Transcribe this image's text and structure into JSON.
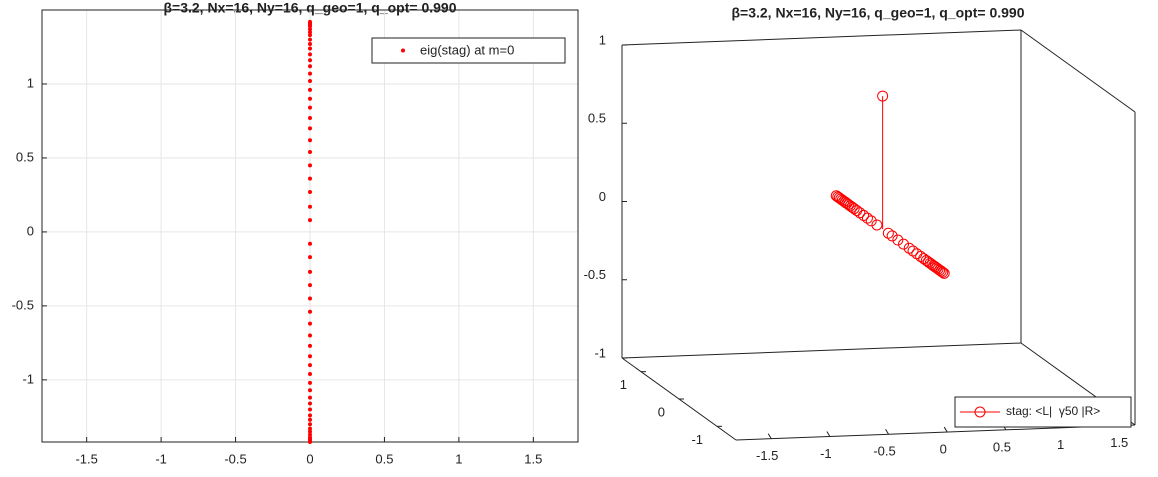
{
  "chart_data": [
    {
      "type": "scatter",
      "title": "β=3.2, Nx=16, Ny=16, q_geo=1, q_opt= 0.990",
      "series": [
        {
          "name": "eig(stag) at m=0",
          "color": "#ff0000",
          "x": [
            0,
            0,
            0,
            0,
            0,
            0,
            0,
            0,
            0,
            0,
            0,
            0,
            0,
            0,
            0,
            0,
            0,
            0,
            0,
            0,
            0,
            0,
            0,
            0,
            0,
            0,
            0,
            0,
            0,
            0,
            0,
            0,
            0,
            0,
            0,
            0,
            0,
            0,
            0,
            0,
            0,
            0,
            0,
            0,
            0,
            0,
            0,
            0,
            0,
            0,
            0,
            0,
            0,
            0
          ],
          "values": [
            1.42,
            1.41,
            1.4,
            1.39,
            1.37,
            1.35,
            1.33,
            1.3,
            1.27,
            1.24,
            1.2,
            1.16,
            1.12,
            1.07,
            1.02,
            0.96,
            0.9,
            0.84,
            0.77,
            0.7,
            0.62,
            0.54,
            0.45,
            0.36,
            0.27,
            0.17,
            0.08,
            -0.08,
            -0.17,
            -0.27,
            -0.36,
            -0.45,
            -0.54,
            -0.62,
            -0.7,
            -0.77,
            -0.84,
            -0.9,
            -0.96,
            -1.02,
            -1.07,
            -1.12,
            -1.16,
            -1.2,
            -1.24,
            -1.27,
            -1.3,
            -1.33,
            -1.35,
            -1.37,
            -1.39,
            -1.4,
            -1.41,
            -1.42
          ]
        }
      ],
      "xlim": [
        -1.8,
        1.8
      ],
      "ylim": [
        -1.42,
        1.5
      ],
      "xticks": [
        -1.5,
        -1,
        -0.5,
        0,
        0.5,
        1,
        1.5
      ],
      "yticks": [
        -1,
        -0.5,
        0,
        0.5,
        1
      ],
      "grid": true,
      "legend": "upper right"
    },
    {
      "type": "stem3",
      "title": "β=3.2, Nx=16, Ny=16, q_geo=1, q_opt= 0.990",
      "series": [
        {
          "name": "stag: <L|  γ50 |R>",
          "color": "#ff0000",
          "x": [
            0,
            0,
            0,
            0,
            0,
            0,
            0,
            0,
            0,
            0,
            0,
            0,
            0,
            0,
            0,
            0,
            0,
            0,
            0,
            0,
            0,
            0,
            0,
            0,
            0,
            0,
            0,
            0,
            0,
            0,
            0,
            0,
            0,
            0,
            0,
            0,
            0,
            0,
            0,
            0
          ],
          "y": [
            1.42,
            1.38,
            1.34,
            1.3,
            1.26,
            1.22,
            1.18,
            1.14,
            1.1,
            1.05,
            1.0,
            0.95,
            0.88,
            0.8,
            0.7,
            0.6,
            0.5,
            0.35,
            0.2,
            0.05,
            -0.05,
            -0.2,
            -0.35,
            -0.5,
            -0.6,
            -0.7,
            -0.8,
            -0.88,
            -0.95,
            -1.0,
            -1.05,
            -1.1,
            -1.14,
            -1.18,
            -1.22,
            -1.26,
            -1.3,
            -1.34,
            -1.38,
            -1.42
          ],
          "z": [
            0,
            0,
            0,
            0,
            0,
            0,
            0,
            0,
            0,
            0,
            0,
            0,
            0,
            0,
            0,
            0,
            0,
            0,
            0.85,
            0,
            0,
            0,
            0,
            0,
            0,
            0,
            0,
            0,
            0,
            0,
            0,
            0,
            0,
            0,
            0,
            0,
            0,
            0,
            0,
            0
          ]
        }
      ],
      "xlim": [
        -1.8,
        1.6
      ],
      "ylim": [
        -1.5,
        1.5
      ],
      "zlim": [
        -1,
        1
      ],
      "xticks": [
        -1.5,
        -1,
        -0.5,
        0,
        0.5,
        1,
        1.5
      ],
      "yticks": [
        -1,
        0,
        1
      ],
      "zticks": [
        -1,
        -0.5,
        0,
        0.5,
        1
      ],
      "grid": false,
      "legend": "lower right"
    }
  ]
}
